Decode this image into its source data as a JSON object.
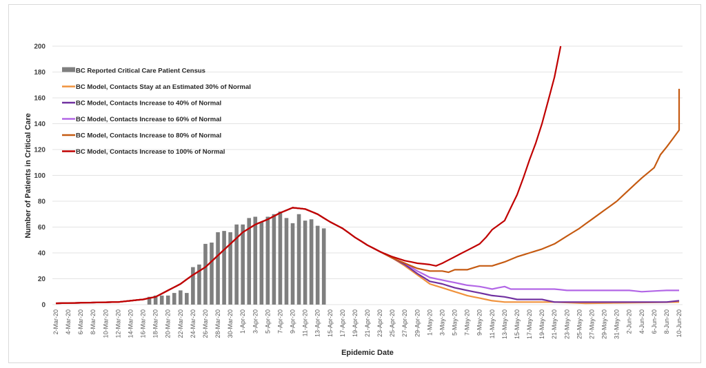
{
  "chart_data": {
    "type": "line",
    "title": "",
    "xlabel": "Epidemic Date",
    "ylabel": "Number of Patients in Critical Care",
    "ylim": [
      0,
      200
    ],
    "yticks": [
      0,
      20,
      40,
      60,
      80,
      100,
      120,
      140,
      160,
      180,
      200
    ],
    "grid": "horizontal",
    "legend_position": "top-left",
    "x_start": "2-Mar-20",
    "x_end": "10-Jun-20",
    "x_days": 101,
    "x_tick_labels": [
      "2-Mar-20",
      "4-Mar-20",
      "6-Mar-20",
      "8-Mar-20",
      "10-Mar-20",
      "12-Mar-20",
      "14-Mar-20",
      "16-Mar-20",
      "18-Mar-20",
      "20-Mar-20",
      "22-Mar-20",
      "24-Mar-20",
      "26-Mar-20",
      "28-Mar-20",
      "30-Mar-20",
      "1-Apr-20",
      "3-Apr-20",
      "5-Apr-20",
      "7-Apr-20",
      "9-Apr-20",
      "11-Apr-20",
      "13-Apr-20",
      "15-Apr-20",
      "17-Apr-20",
      "19-Apr-20",
      "21-Apr-20",
      "23-Apr-20",
      "25-Apr-20",
      "27-Apr-20",
      "29-Apr-20",
      "1-May-20",
      "3-May-20",
      "5-May-20",
      "7-May-20",
      "9-May-20",
      "11-May-20",
      "13-May-20",
      "15-May-20",
      "17-May-20",
      "19-May-20",
      "21-May-20",
      "23-May-20",
      "25-May-20",
      "27-May-20",
      "29-May-20",
      "31-May-20",
      "2-Jun-20",
      "4-Jun-20",
      "6-Jun-20",
      "8-Jun-20",
      "10-Jun-20"
    ],
    "bars": {
      "name": "BC Reported Critical Care Patient Census",
      "color": "#7f7f7f",
      "start_day": 15,
      "values": [
        6,
        7,
        7,
        7,
        9,
        11,
        9,
        29,
        31,
        47,
        48,
        56,
        57,
        56,
        62,
        62,
        67,
        68,
        64,
        68,
        70,
        72,
        67,
        63,
        70,
        65,
        66,
        61,
        59
      ]
    },
    "series": [
      {
        "name": "BC Model, Contacts Stay at an Estimated 30% of Normal",
        "color": "#f0923c",
        "anchors": [
          [
            0,
            1
          ],
          [
            10,
            2
          ],
          [
            14,
            4
          ],
          [
            16,
            6
          ],
          [
            18,
            11
          ],
          [
            20,
            16
          ],
          [
            22,
            23
          ],
          [
            24,
            29
          ],
          [
            26,
            38
          ],
          [
            28,
            47
          ],
          [
            30,
            56
          ],
          [
            32,
            62
          ],
          [
            34,
            66
          ],
          [
            36,
            71
          ],
          [
            38,
            75
          ],
          [
            40,
            74
          ],
          [
            42,
            70
          ],
          [
            44,
            64
          ],
          [
            46,
            59
          ],
          [
            48,
            52
          ],
          [
            50,
            46
          ],
          [
            52,
            41
          ],
          [
            54,
            36
          ],
          [
            56,
            30
          ],
          [
            58,
            23
          ],
          [
            60,
            16
          ],
          [
            62,
            13
          ],
          [
            64,
            10
          ],
          [
            66,
            7
          ],
          [
            68,
            5
          ],
          [
            70,
            3
          ],
          [
            72,
            2
          ],
          [
            80,
            2
          ],
          [
            85,
            1
          ],
          [
            100,
            2
          ]
        ]
      },
      {
        "name": "BC Model, Contacts Increase to 40% of Normal",
        "color": "#7030a0",
        "anchors": [
          [
            0,
            1
          ],
          [
            10,
            2
          ],
          [
            14,
            4
          ],
          [
            16,
            6
          ],
          [
            18,
            11
          ],
          [
            20,
            16
          ],
          [
            22,
            23
          ],
          [
            24,
            29
          ],
          [
            26,
            38
          ],
          [
            28,
            47
          ],
          [
            30,
            56
          ],
          [
            32,
            62
          ],
          [
            34,
            66
          ],
          [
            36,
            71
          ],
          [
            38,
            75
          ],
          [
            40,
            74
          ],
          [
            42,
            70
          ],
          [
            44,
            64
          ],
          [
            46,
            59
          ],
          [
            48,
            52
          ],
          [
            50,
            46
          ],
          [
            52,
            41
          ],
          [
            54,
            36
          ],
          [
            56,
            31
          ],
          [
            58,
            24
          ],
          [
            60,
            18
          ],
          [
            62,
            16
          ],
          [
            64,
            13
          ],
          [
            66,
            11
          ],
          [
            68,
            9
          ],
          [
            70,
            7
          ],
          [
            72,
            6
          ],
          [
            74,
            4
          ],
          [
            78,
            4
          ],
          [
            80,
            2
          ],
          [
            98,
            2
          ],
          [
            100,
            3
          ]
        ]
      },
      {
        "name": "BC Model, Contacts Increase to 60% of Normal",
        "color": "#b266e6",
        "anchors": [
          [
            0,
            1
          ],
          [
            10,
            2
          ],
          [
            14,
            4
          ],
          [
            16,
            6
          ],
          [
            18,
            11
          ],
          [
            20,
            16
          ],
          [
            22,
            23
          ],
          [
            24,
            29
          ],
          [
            26,
            38
          ],
          [
            28,
            47
          ],
          [
            30,
            56
          ],
          [
            32,
            62
          ],
          [
            34,
            66
          ],
          [
            36,
            71
          ],
          [
            38,
            75
          ],
          [
            40,
            74
          ],
          [
            42,
            70
          ],
          [
            44,
            64
          ],
          [
            46,
            59
          ],
          [
            48,
            52
          ],
          [
            50,
            46
          ],
          [
            52,
            41
          ],
          [
            54,
            36
          ],
          [
            56,
            32
          ],
          [
            58,
            26
          ],
          [
            60,
            21
          ],
          [
            62,
            19
          ],
          [
            64,
            17
          ],
          [
            66,
            15
          ],
          [
            68,
            14
          ],
          [
            70,
            12
          ],
          [
            72,
            14
          ],
          [
            73,
            12
          ],
          [
            80,
            12
          ],
          [
            82,
            11
          ],
          [
            86,
            11
          ],
          [
            92,
            11
          ],
          [
            94,
            10
          ],
          [
            98,
            11
          ],
          [
            100,
            11
          ]
        ]
      },
      {
        "name": "BC Model, Contacts Increase to 80% of Normal",
        "color": "#c55a11",
        "anchors": [
          [
            0,
            1
          ],
          [
            10,
            2
          ],
          [
            14,
            4
          ],
          [
            16,
            6
          ],
          [
            18,
            11
          ],
          [
            20,
            16
          ],
          [
            22,
            23
          ],
          [
            24,
            29
          ],
          [
            26,
            38
          ],
          [
            28,
            47
          ],
          [
            30,
            56
          ],
          [
            32,
            62
          ],
          [
            34,
            66
          ],
          [
            36,
            71
          ],
          [
            38,
            75
          ],
          [
            40,
            74
          ],
          [
            42,
            70
          ],
          [
            44,
            64
          ],
          [
            46,
            59
          ],
          [
            48,
            52
          ],
          [
            50,
            46
          ],
          [
            52,
            41
          ],
          [
            54,
            36
          ],
          [
            56,
            32
          ],
          [
            58,
            28
          ],
          [
            60,
            26
          ],
          [
            62,
            26
          ],
          [
            63,
            25
          ],
          [
            64,
            27
          ],
          [
            66,
            27
          ],
          [
            68,
            30
          ],
          [
            70,
            30
          ],
          [
            72,
            33
          ],
          [
            74,
            37
          ],
          [
            76,
            40
          ],
          [
            78,
            43
          ],
          [
            80,
            47
          ],
          [
            82,
            53
          ],
          [
            84,
            59
          ],
          [
            86,
            66
          ],
          [
            88,
            73
          ],
          [
            90,
            80
          ],
          [
            92,
            89
          ],
          [
            94,
            98
          ],
          [
            96,
            106
          ],
          [
            97,
            116
          ],
          [
            98,
            122
          ],
          [
            100,
            135
          ],
          [
            101,
            142
          ],
          [
            102,
            150
          ],
          [
            103,
            160
          ],
          [
            104,
            167
          ]
        ]
      },
      {
        "name": "BC Model, Contacts Increase to 100% of Normal",
        "color": "#c00000",
        "anchors": [
          [
            0,
            1
          ],
          [
            10,
            2
          ],
          [
            14,
            4
          ],
          [
            16,
            6
          ],
          [
            18,
            11
          ],
          [
            20,
            16
          ],
          [
            22,
            23
          ],
          [
            24,
            29
          ],
          [
            26,
            38
          ],
          [
            28,
            47
          ],
          [
            30,
            56
          ],
          [
            32,
            62
          ],
          [
            34,
            66
          ],
          [
            36,
            71
          ],
          [
            38,
            75
          ],
          [
            40,
            74
          ],
          [
            42,
            70
          ],
          [
            44,
            64
          ],
          [
            46,
            59
          ],
          [
            48,
            52
          ],
          [
            50,
            46
          ],
          [
            52,
            41
          ],
          [
            54,
            37
          ],
          [
            56,
            34
          ],
          [
            58,
            32
          ],
          [
            60,
            31
          ],
          [
            61,
            30
          ],
          [
            62,
            32
          ],
          [
            64,
            37
          ],
          [
            66,
            42
          ],
          [
            68,
            47
          ],
          [
            69,
            52
          ],
          [
            70,
            58
          ],
          [
            72,
            65
          ],
          [
            73,
            75
          ],
          [
            74,
            85
          ],
          [
            75,
            98
          ],
          [
            76,
            112
          ],
          [
            77,
            125
          ],
          [
            78,
            140
          ],
          [
            79,
            158
          ],
          [
            80,
            176
          ],
          [
            81,
            200
          ]
        ]
      }
    ]
  },
  "legend": [
    {
      "label": "BC Reported Critical Care Patient Census",
      "kind": "bar",
      "color": "#7f7f7f"
    },
    {
      "label": "BC Model, Contacts Stay at an Estimated 30% of Normal",
      "kind": "line",
      "color": "#f0923c"
    },
    {
      "label": "BC Model, Contacts Increase to 40% of Normal",
      "kind": "line",
      "color": "#7030a0"
    },
    {
      "label": "BC Model, Contacts Increase to 60% of Normal",
      "kind": "line",
      "color": "#b266e6"
    },
    {
      "label": "BC Model, Contacts Increase to 80% of Normal",
      "kind": "line",
      "color": "#c55a11"
    },
    {
      "label": "BC Model, Contacts Increase to 100% of Normal",
      "kind": "line",
      "color": "#c00000"
    }
  ]
}
